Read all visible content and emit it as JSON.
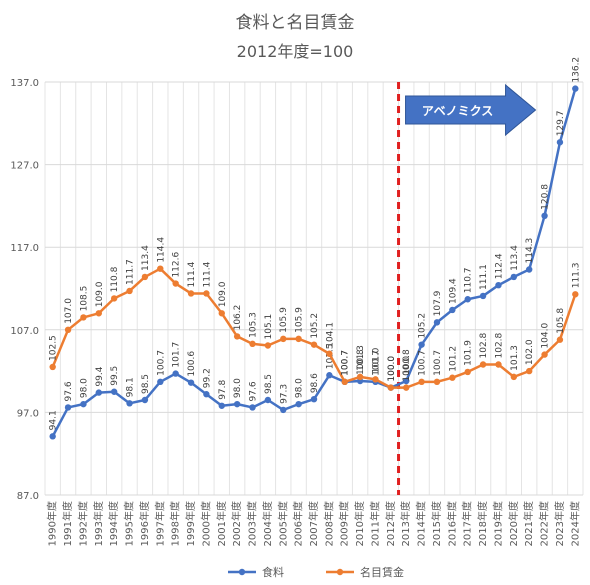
{
  "chart_data": {
    "type": "line",
    "title": "食料と名目賃金",
    "subtitle": "2012年度=100",
    "categories": [
      "1990年度",
      "1991年度",
      "1992年度",
      "1993年度",
      "1994年度",
      "1995年度",
      "1996年度",
      "1997年度",
      "1998年度",
      "1999年度",
      "2000年度",
      "2001年度",
      "2002年度",
      "2003年度",
      "2004年度",
      "2005年度",
      "2006年度",
      "2007年度",
      "2008年度",
      "2009年度",
      "2010年度",
      "2011年度",
      "2012年度",
      "2013年度",
      "2014年度",
      "2015年度",
      "2016年度",
      "2017年度",
      "2018年度",
      "2019年度",
      "2020年度",
      "2021年度",
      "2022年度",
      "2023年度",
      "2024年度"
    ],
    "series": [
      {
        "name": "食料",
        "color": "#4472C4",
        "values": [
          94.1,
          97.6,
          98.0,
          99.4,
          99.5,
          98.1,
          98.5,
          100.7,
          101.7,
          100.6,
          99.2,
          97.8,
          98.0,
          97.6,
          98.5,
          97.3,
          98.0,
          98.6,
          101.5,
          100.7,
          100.8,
          100.7,
          100.0,
          100.8,
          105.2,
          107.9,
          109.4,
          110.7,
          111.1,
          112.4,
          113.4,
          114.3,
          120.8,
          129.7,
          136.2
        ],
        "labels": [
          "94.1",
          "97.6",
          "98.0",
          "99.4",
          "99.5",
          "98.1",
          "98.5",
          "100.7",
          "101.7",
          "100.6",
          "99.2",
          "97.8",
          "98.0",
          "97.6",
          "98.5",
          "97.3",
          "98.0",
          "98.6",
          "101.5",
          "100.7",
          "100.8",
          "100.7",
          "100.0",
          "100.8",
          "105.2",
          "107.9",
          "109.4",
          "110.7",
          "111.1",
          "112.4",
          "113.4",
          "114.3",
          "120.8",
          "129.7",
          "136.2"
        ]
      },
      {
        "name": "名目賃金",
        "color": "#ED7D31",
        "values": [
          102.5,
          107.0,
          108.5,
          109.0,
          110.8,
          111.7,
          113.4,
          114.4,
          112.6,
          111.4,
          111.4,
          109.0,
          106.2,
          105.3,
          105.1,
          105.9,
          105.9,
          105.2,
          104.1,
          100.7,
          101.3,
          101.0,
          100.0,
          100.0,
          100.7,
          100.7,
          101.2,
          101.9,
          102.8,
          102.8,
          101.3,
          102.0,
          104.0,
          105.8,
          111.3
        ],
        "labels": [
          "102.5",
          "107.0",
          "108.5",
          "109.0",
          "110.8",
          "111.7",
          "113.4",
          "114.4",
          "112.6",
          "111.4",
          "111.4",
          "109.0",
          "106.2",
          "105.3",
          "105.1",
          "105.9",
          "105.9",
          "105.2",
          "104.1",
          "100.7",
          "101.3",
          "101.0",
          "100.0",
          "100.0",
          "100.7",
          "100.7",
          "101.2",
          "101.9",
          "102.8",
          "102.8",
          "101.3",
          "102.0",
          "104.0",
          "105.8",
          "111.3"
        ]
      }
    ],
    "ylim": [
      87.0,
      137.0
    ],
    "yticks": [
      "87.0",
      "97.0",
      "107.0",
      "117.0",
      "127.0",
      "137.0"
    ],
    "grid": true,
    "legend": "bottom",
    "annotation": {
      "text": "アベノミクス",
      "fill": "#4472C4",
      "border": "#2F5597",
      "divider_color": "#E02020",
      "divider_between": [
        "2012年度",
        "2013年度"
      ]
    }
  }
}
